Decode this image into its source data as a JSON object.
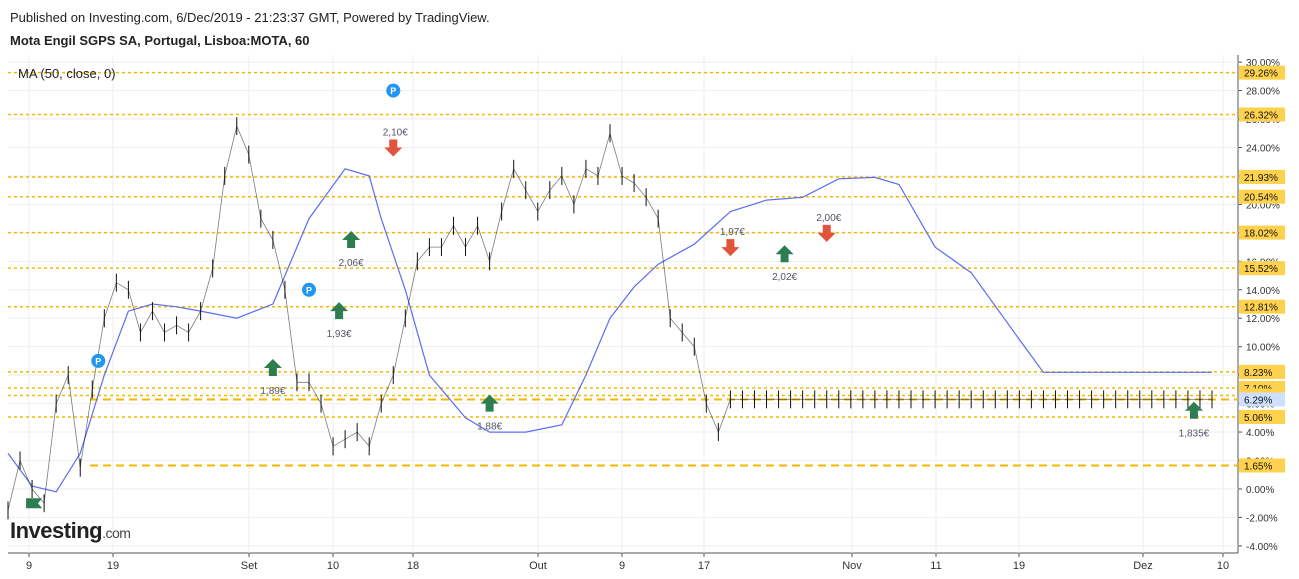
{
  "header": {
    "published": "Published on Investing.com, 6/Dec/2019 - 21:23:37 GMT, Powered by TradingView.",
    "symbol": "Mota Engil SGPS SA, Portugal, Lisboa:MOTA, 60",
    "indicator": "MA (50, close, 0)"
  },
  "logo": {
    "brand": "Investing",
    "domain": ".com"
  },
  "chart_data": {
    "type": "line",
    "title": "Mota Engil SGPS SA, Portugal, Lisboa:MOTA, 60",
    "y_unit": "percent",
    "ylim": [
      -4.5,
      30.5
    ],
    "y_ticks": [
      "30.00%",
      "28.00%",
      "26.00%",
      "24.00%",
      "22.00%",
      "20.00%",
      "18.00%",
      "16.00%",
      "14.00%",
      "12.00%",
      "10.00%",
      "8.00%",
      "6.00%",
      "4.00%",
      "2.00%",
      "0.00%",
      "-2.00%",
      "-4.00%"
    ],
    "x_ticks": [
      "9",
      "19",
      "Set",
      "10",
      "18",
      "Out",
      "9",
      "17",
      "Nov",
      "11",
      "19",
      "Dez",
      "10"
    ],
    "grid": true,
    "colors": {
      "price": "#111111",
      "ma": "#5b6cf0",
      "level": "#f5b800",
      "buy": "#2e7d4f",
      "sell": "#e0533d",
      "pin": "#2196f3",
      "flag": "#2e7d4f"
    },
    "series": [
      {
        "name": "MA (50, close, 0)",
        "x": [
          0.0,
          0.02,
          0.04,
          0.06,
          0.08,
          0.1,
          0.12,
          0.14,
          0.16,
          0.19,
          0.22,
          0.25,
          0.28,
          0.3,
          0.31,
          0.33,
          0.35,
          0.38,
          0.4,
          0.43,
          0.46,
          0.48,
          0.5,
          0.52,
          0.54,
          0.57,
          0.6,
          0.63,
          0.66,
          0.69,
          0.72,
          0.74,
          0.77,
          0.8,
          0.84,
          0.86,
          0.88,
          0.9,
          0.92,
          0.95,
          0.97,
          1.0
        ],
        "y": [
          2.5,
          0.2,
          -0.2,
          2.5,
          8,
          12.5,
          13,
          12.8,
          12.5,
          12,
          13,
          19,
          22.5,
          22,
          19,
          14,
          8,
          5,
          4,
          4,
          4.5,
          8,
          12,
          14.2,
          15.8,
          17.2,
          19.5,
          20.3,
          20.5,
          21.8,
          21.9,
          21.4,
          17,
          15.2,
          10.5,
          8.2,
          8.2,
          8.2,
          8.2,
          8.2,
          8.2,
          8.2
        ]
      },
      {
        "name": "price",
        "x": [
          0.0,
          0.01,
          0.02,
          0.03,
          0.04,
          0.05,
          0.06,
          0.07,
          0.08,
          0.09,
          0.1,
          0.11,
          0.12,
          0.13,
          0.14,
          0.15,
          0.16,
          0.17,
          0.18,
          0.19,
          0.2,
          0.21,
          0.22,
          0.23,
          0.24,
          0.25,
          0.26,
          0.27,
          0.28,
          0.29,
          0.3,
          0.31,
          0.32,
          0.33,
          0.34,
          0.35,
          0.36,
          0.37,
          0.38,
          0.39,
          0.4,
          0.41,
          0.42,
          0.43,
          0.44,
          0.45,
          0.46,
          0.47,
          0.48,
          0.49,
          0.5,
          0.51,
          0.52,
          0.53,
          0.54,
          0.55,
          0.56,
          0.57,
          0.58,
          0.59,
          0.6,
          0.61,
          0.62,
          0.63,
          0.64,
          0.65,
          0.66,
          0.67,
          0.68,
          0.69,
          0.7,
          0.71,
          0.72,
          0.73,
          0.74,
          0.75,
          0.76,
          0.77,
          0.78,
          0.79,
          0.8,
          0.81,
          0.82,
          0.83,
          0.84,
          0.85,
          0.86,
          0.87,
          0.88,
          0.89,
          0.9,
          0.91,
          0.92,
          0.93,
          0.94,
          0.95,
          0.96,
          0.97,
          0.98,
          0.99,
          1.0
        ],
        "y": [
          -1.5,
          2,
          0,
          -1,
          6,
          8,
          1.5,
          7,
          12,
          14.5,
          14,
          11,
          12.5,
          11,
          11.5,
          11,
          12.5,
          15.5,
          22,
          25.5,
          23.5,
          19,
          17.5,
          14,
          7.5,
          7.5,
          6,
          3,
          3.5,
          4,
          3,
          6,
          8,
          12,
          16,
          17,
          17,
          18.5,
          17,
          18.5,
          16,
          19.5,
          22.5,
          21,
          19.5,
          21,
          22,
          20,
          22.5,
          22,
          25,
          22,
          21.5,
          20.5,
          19,
          12,
          11,
          10,
          6,
          4,
          6.3,
          6.3,
          6.3,
          6.3,
          6.3,
          6.3,
          6.3,
          6.3,
          6.3,
          6.3,
          6.3,
          6.3,
          6.3,
          6.3,
          6.3,
          6.3,
          6.3,
          6.3,
          6.3,
          6.3,
          6.3,
          6.3,
          6.3,
          6.3,
          6.3,
          6.3,
          6.3,
          6.3,
          6.3,
          6.3,
          6.3,
          6.3,
          6.3,
          6.3,
          6.3,
          6.3,
          6.3,
          6.3,
          6.3,
          6.3,
          6.3
        ]
      }
    ],
    "level_lines": [
      {
        "label": "29.26%",
        "value": 29.26,
        "style": "dotted"
      },
      {
        "label": "26.32%",
        "value": 26.32,
        "style": "dotted"
      },
      {
        "label": "21.93%",
        "value": 21.93,
        "style": "dotted"
      },
      {
        "label": "20.54%",
        "value": 20.54,
        "style": "dotted"
      },
      {
        "label": "18.02%",
        "value": 18.02,
        "style": "dotted"
      },
      {
        "label": "15.52%",
        "value": 15.52,
        "style": "dotted"
      },
      {
        "label": "12.81%",
        "value": 12.81,
        "style": "dotted"
      },
      {
        "label": "8.23%",
        "value": 8.23,
        "style": "dotted"
      },
      {
        "label": "7.10%",
        "value": 7.1,
        "style": "dotted"
      },
      {
        "label": "6.57%",
        "value": 6.57,
        "style": "dotted"
      },
      {
        "label": "6.29%",
        "value": 6.29,
        "style": "dashed"
      },
      {
        "label": "5.06%",
        "value": 5.06,
        "style": "dotted"
      },
      {
        "label": "1.65%",
        "value": 1.65,
        "style": "dashed"
      }
    ],
    "annotations": [
      {
        "kind": "buy",
        "text": "1,89€",
        "x": 0.22,
        "y": 8.5
      },
      {
        "kind": "buy",
        "text": "1,93€",
        "x": 0.275,
        "y": 12.5
      },
      {
        "kind": "buy",
        "text": "2,06€",
        "x": 0.285,
        "y": 17.5
      },
      {
        "kind": "sell",
        "text": "2,10€",
        "x": 0.32,
        "y": 24
      },
      {
        "kind": "buy",
        "text": "1,88€",
        "x": 0.4,
        "y": 6
      },
      {
        "kind": "sell",
        "text": "1,97€",
        "x": 0.6,
        "y": 17
      },
      {
        "kind": "buy",
        "text": "2,02€",
        "x": 0.645,
        "y": 16.5
      },
      {
        "kind": "sell",
        "text": "2,00€",
        "x": 0.68,
        "y": 18
      },
      {
        "kind": "buy",
        "text": "1,835€",
        "x": 0.985,
        "y": 5.5
      }
    ],
    "pins": [
      {
        "x": 0.075,
        "y": 9
      },
      {
        "x": 0.25,
        "y": 14
      },
      {
        "x": 0.32,
        "y": 28
      }
    ]
  }
}
